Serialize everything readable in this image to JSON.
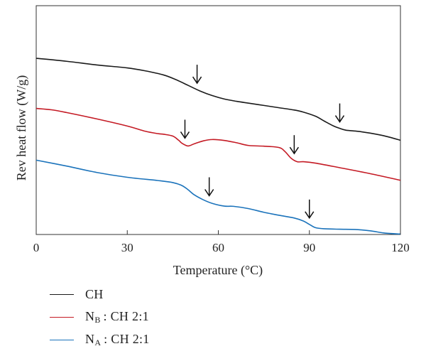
{
  "chart_data": {
    "type": "line",
    "xlabel": "Temperature (°C)",
    "ylabel": "Rev heat flow (W/g)",
    "xlim": [
      0,
      120
    ],
    "ylim": [
      0,
      1
    ],
    "xticks": [
      0,
      30,
      60,
      90,
      120
    ],
    "x_tick_labels": [
      "0",
      "30",
      "60",
      "90",
      "120"
    ],
    "grid": false,
    "legend_position": "bottom-left",
    "series": [
      {
        "name": "CH",
        "color": "#1a1a1a",
        "x": [
          0,
          10,
          20,
          30,
          36,
          42,
          46,
          50,
          54,
          58,
          62,
          66,
          70,
          75,
          80,
          85,
          88,
          92,
          95,
          98,
          100,
          102,
          106,
          110,
          115,
          120
        ],
        "y": [
          0.77,
          0.757,
          0.741,
          0.728,
          0.715,
          0.697,
          0.677,
          0.652,
          0.627,
          0.607,
          0.592,
          0.582,
          0.574,
          0.564,
          0.554,
          0.544,
          0.535,
          0.517,
          0.495,
          0.474,
          0.464,
          0.456,
          0.451,
          0.443,
          0.43,
          0.412
        ],
        "transition_markers": [
          53,
          100
        ]
      },
      {
        "name": "N_B : CH 2:1",
        "color": "#c41a24",
        "x": [
          0,
          5,
          10,
          20,
          30,
          36,
          40,
          42,
          45,
          47,
          48,
          50,
          52,
          55,
          58,
          62,
          66,
          70,
          75,
          80,
          82,
          84,
          86,
          88,
          92,
          100,
          110,
          120
        ],
        "y": [
          0.551,
          0.545,
          0.533,
          0.505,
          0.474,
          0.451,
          0.441,
          0.438,
          0.43,
          0.411,
          0.399,
          0.387,
          0.396,
          0.409,
          0.415,
          0.411,
          0.401,
          0.389,
          0.386,
          0.38,
          0.362,
          0.333,
          0.318,
          0.318,
          0.312,
          0.292,
          0.266,
          0.237
        ],
        "transition_markers": [
          49,
          85
        ]
      },
      {
        "name": "N_A : CH 2:1",
        "color": "#1b73bb",
        "x": [
          0,
          10,
          20,
          30,
          40,
          45,
          48,
          50,
          52,
          55,
          58,
          62,
          65,
          70,
          75,
          80,
          85,
          88,
          90,
          92,
          95,
          100,
          105,
          110,
          115,
          120
        ],
        "y": [
          0.325,
          0.299,
          0.271,
          0.25,
          0.236,
          0.227,
          0.214,
          0.196,
          0.174,
          0.152,
          0.136,
          0.124,
          0.123,
          0.113,
          0.097,
          0.084,
          0.072,
          0.059,
          0.044,
          0.03,
          0.025,
          0.023,
          0.022,
          0.016,
          0.006,
          0.002
        ],
        "transition_markers": [
          57,
          90
        ]
      }
    ]
  },
  "legend": {
    "items": [
      {
        "main": "CH",
        "sub": "",
        "rest": "",
        "color": "#1a1a1a"
      },
      {
        "main": "N",
        "sub": "B",
        "rest": " : CH 2:1",
        "color": "#c41a24"
      },
      {
        "main": "N",
        "sub": "A",
        "rest": " : CH 2:1",
        "color": "#1b73bb"
      }
    ]
  }
}
